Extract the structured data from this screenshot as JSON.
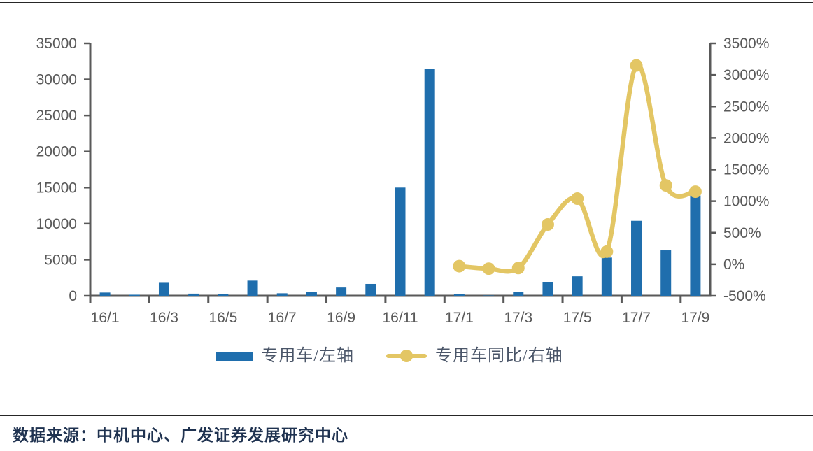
{
  "chart_data": {
    "type": "bar",
    "subtype": "bar-line-combo",
    "categories": [
      "16/1",
      "16/2",
      "16/3",
      "16/4",
      "16/5",
      "16/6",
      "16/7",
      "16/8",
      "16/9",
      "16/10",
      "16/11",
      "16/12",
      "17/1",
      "17/2",
      "17/3",
      "17/4",
      "17/5",
      "17/6",
      "17/7",
      "17/8",
      "17/9"
    ],
    "series": [
      {
        "name": "专用车/左轴",
        "chart_type": "bar",
        "axis": "left",
        "values": [
          450,
          150,
          1800,
          300,
          250,
          2100,
          350,
          550,
          1150,
          1650,
          15000,
          31500,
          200,
          50,
          500,
          1900,
          2700,
          5300,
          10400,
          6300,
          13900
        ]
      },
      {
        "name": "专用车同比/右轴",
        "chart_type": "line",
        "axis": "right",
        "values": [
          null,
          null,
          null,
          null,
          null,
          null,
          null,
          null,
          null,
          null,
          null,
          null,
          -30,
          -70,
          -60,
          630,
          1040,
          200,
          3150,
          1250,
          1150
        ]
      }
    ],
    "left_axis": {
      "min": 0,
      "max": 35000,
      "tick_step": 5000,
      "tick_labels": [
        "35000",
        "30000",
        "25000",
        "20000",
        "15000",
        "10000",
        "5000",
        "0"
      ]
    },
    "right_axis": {
      "min": -500,
      "max": 3500,
      "tick_step": 500,
      "tick_labels": [
        "3500%",
        "3000%",
        "2500%",
        "2000%",
        "1500%",
        "1000%",
        "500%",
        "0%",
        "-500%"
      ]
    },
    "x_tick_labels": [
      "16/1",
      "16/3",
      "16/5",
      "16/7",
      "16/9",
      "16/11",
      "17/1",
      "17/3",
      "17/5",
      "17/7",
      "17/9"
    ],
    "grid": false,
    "legend_position": "bottom",
    "title": "",
    "xlabel": "",
    "ylabel": ""
  },
  "colors": {
    "bar": "#1f6ead",
    "line": "#e3c664",
    "axis": "#595959",
    "tick_label": "#595959",
    "legend_text": "#4a5568",
    "footer_text": "#1f3250",
    "rule": "#262626"
  },
  "legend": {
    "bar_label": "专用车/左轴",
    "line_label": "专用车同比/右轴"
  },
  "footer": {
    "source_text": "数据来源：中机中心、广发证券发展研究中心"
  }
}
